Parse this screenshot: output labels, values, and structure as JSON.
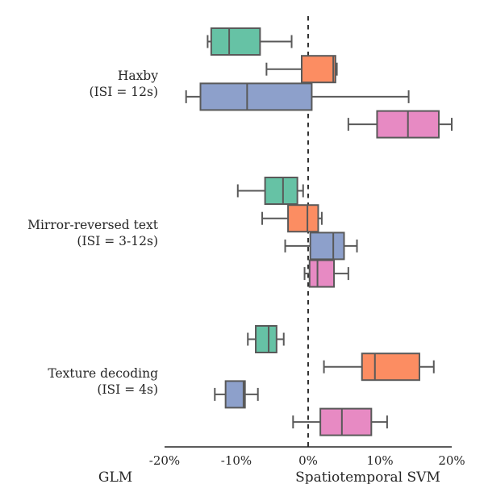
{
  "chart_data": {
    "type": "boxplot",
    "orientation": "horizontal",
    "xlim": [
      -20,
      20
    ],
    "x_ticks": [
      -20,
      -10,
      0,
      10,
      20
    ],
    "x_tick_labels": [
      "-20%",
      "-10%",
      "0%",
      "10%",
      "20%"
    ],
    "reference_line": 0,
    "bottom_left_label": "GLM",
    "bottom_right_label": "Spatiotemporal SVM",
    "series_colors": [
      "#66c2a5",
      "#fc8d62",
      "#8da0cb",
      "#e78ac3"
    ],
    "groups": [
      {
        "label_lines": [
          "Haxby",
          "(ISI = 12s)"
        ],
        "boxes": [
          {
            "whisker_low": -14,
            "q1": -13.5,
            "median": -11,
            "q3": -6.7,
            "whisker_high": -2.3
          },
          {
            "whisker_low": -5.8,
            "q1": -0.9,
            "median": 3.5,
            "q3": 3.8,
            "whisker_high": 4.0
          },
          {
            "whisker_low": -17,
            "q1": -15,
            "median": -8.5,
            "q3": 0.5,
            "whisker_high": 14
          },
          {
            "whisker_low": 5.6,
            "q1": 9.6,
            "median": 13.9,
            "q3": 18.2,
            "whisker_high": 20
          }
        ]
      },
      {
        "label_lines": [
          "Mirror-reversed text",
          "(ISI = 3-12s)"
        ],
        "boxes": [
          {
            "whisker_low": -9.8,
            "q1": -6.0,
            "median": -3.5,
            "q3": -1.5,
            "whisker_high": -0.7
          },
          {
            "whisker_low": -6.4,
            "q1": -2.8,
            "median": -0.1,
            "q3": 1.4,
            "whisker_high": 1.9
          },
          {
            "whisker_low": -3.2,
            "q1": 0.3,
            "median": 3.5,
            "q3": 5.0,
            "whisker_high": 6.8
          },
          {
            "whisker_low": -0.5,
            "q1": 0.2,
            "median": 1.3,
            "q3": 3.6,
            "whisker_high": 5.6
          }
        ]
      },
      {
        "label_lines": [
          "Texture decoding",
          "(ISI = 4s)"
        ],
        "boxes": [
          {
            "whisker_low": -8.4,
            "q1": -7.3,
            "median": -5.5,
            "q3": -4.4,
            "whisker_high": -3.4
          },
          {
            "whisker_low": 2.2,
            "q1": 7.5,
            "median": 9.3,
            "q3": 15.5,
            "whisker_high": 17.5
          },
          {
            "whisker_low": -13,
            "q1": -11.5,
            "median": -9.0,
            "q3": -8.8,
            "whisker_high": -7.0
          },
          {
            "whisker_low": -2.1,
            "q1": 1.7,
            "median": 4.7,
            "q3": 8.8,
            "whisker_high": 11.0
          }
        ]
      }
    ]
  }
}
